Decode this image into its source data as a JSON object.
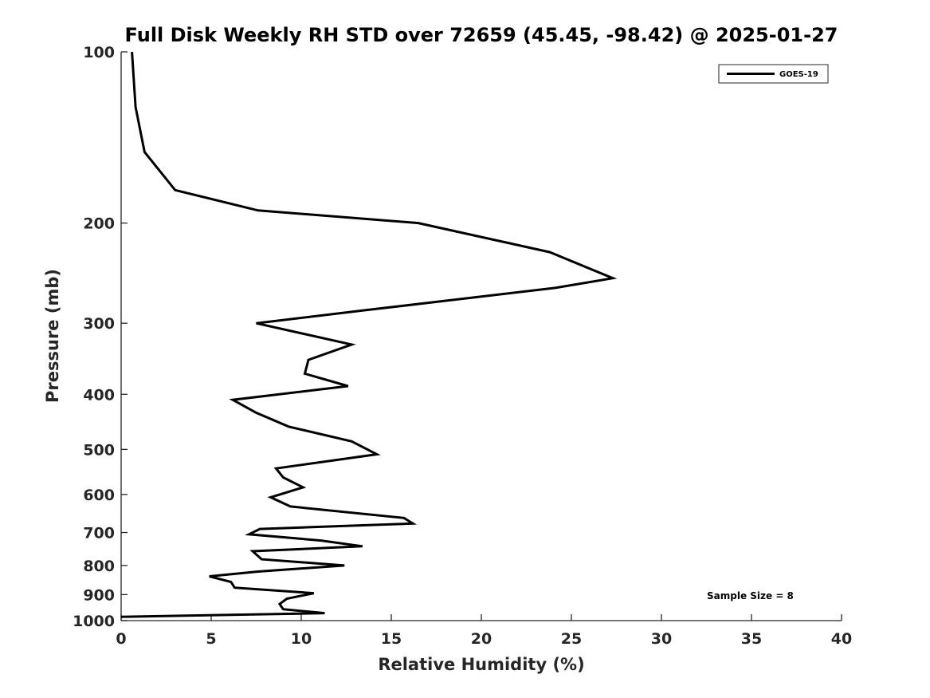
{
  "chart_data": {
    "type": "line",
    "title": "Full Disk Weekly RH STD over 72659 (45.45, -98.42) @ 2025-01-27",
    "xlabel": "Relative Humidity (%)",
    "ylabel": "Pressure (mb)",
    "xlim": [
      0,
      40
    ],
    "ylim": [
      100,
      1000
    ],
    "y_scale": "log",
    "y_reversed": true,
    "x_ticks": [
      "0",
      "5",
      "10",
      "15",
      "20",
      "25",
      "30",
      "35",
      "40"
    ],
    "y_ticks": [
      "100",
      "200",
      "300",
      "400",
      "500",
      "600",
      "700",
      "800",
      "900",
      "1000"
    ],
    "legend_position": "top-right",
    "annotation": "Sample Size = 8",
    "series": [
      {
        "name": "GOES-19",
        "color": "#000000",
        "x": [
          0.6,
          0.8,
          1.3,
          3.0,
          7.6,
          16.5,
          23.8,
          27.3,
          24.1,
          13.4,
          7.5,
          12.8,
          10.4,
          10.2,
          12.6,
          6.2,
          7.5,
          9.3,
          12.8,
          14.2,
          8.6,
          9.0,
          10.1,
          8.3,
          9.4,
          15.7,
          16.2,
          7.7,
          7.1,
          11.1,
          13.4,
          7.3,
          7.8,
          12.4,
          7.6,
          4.9,
          6.1,
          6.3,
          10.7,
          9.2,
          8.8,
          9.0,
          11.3,
          0.0
        ],
        "y": [
          100,
          125,
          150,
          175,
          190,
          200,
          225,
          250,
          260,
          285,
          300,
          327,
          348,
          368,
          387,
          409,
          431,
          456,
          484,
          510,
          540,
          560,
          583,
          607,
          630,
          660,
          675,
          690,
          705,
          723,
          740,
          755,
          780,
          800,
          820,
          836,
          855,
          875,
          895,
          915,
          935,
          955,
          970,
          985
        ]
      }
    ]
  }
}
